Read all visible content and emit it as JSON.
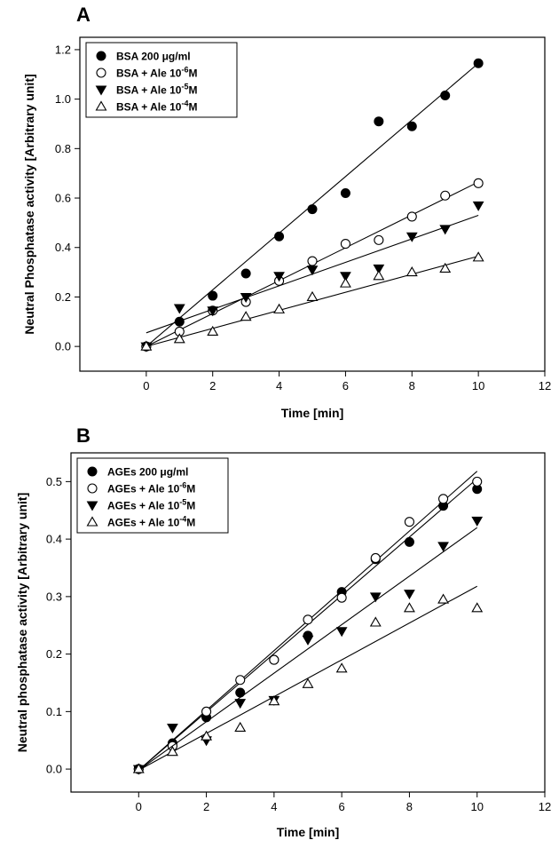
{
  "chart_data": [
    {
      "type": "scatter",
      "panel_label": "A",
      "xlabel": "Time [min]",
      "ylabel": "Neutral Phosphatase activity [Arbitrary unit]",
      "xlim": [
        -2,
        12
      ],
      "ylim": [
        -0.1,
        1.25
      ],
      "xticks": [
        0,
        2,
        4,
        6,
        8,
        10,
        12
      ],
      "yticks": [
        0.0,
        0.2,
        0.4,
        0.6,
        0.8,
        1.0,
        1.2
      ],
      "ytick_labels": [
        "0.0",
        "0.2",
        "0.4",
        "0.6",
        "0.8",
        "1.0",
        "1.2"
      ],
      "grid": false,
      "legend_position": "top-left",
      "series": [
        {
          "name": "BSA 200 μg/ml",
          "name_pre": "BSA 200 μg/ml",
          "name_exp": "",
          "name_post": "",
          "marker": "circle-filled",
          "x": [
            0,
            1,
            2,
            3,
            4,
            5,
            6,
            7,
            8,
            9,
            10
          ],
          "y": [
            0.0,
            0.1,
            0.205,
            0.295,
            0.445,
            0.555,
            0.62,
            0.91,
            0.89,
            1.015,
            1.145
          ],
          "fit": [
            0.0,
            0.0,
            10,
            1.145
          ]
        },
        {
          "name": "BSA + Ale 10-6M",
          "name_pre": "BSA + Ale 10",
          "name_exp": "-6",
          "name_post": "M",
          "marker": "circle-open",
          "x": [
            0,
            1,
            2,
            3,
            4,
            5,
            6,
            7,
            8,
            9,
            10
          ],
          "y": [
            0.0,
            0.06,
            0.145,
            0.18,
            0.265,
            0.345,
            0.415,
            0.43,
            0.525,
            0.61,
            0.66
          ],
          "fit": [
            0.0,
            0.0,
            10,
            0.665
          ]
        },
        {
          "name": "BSA + Ale 10-5M",
          "name_pre": "BSA + Ale 10",
          "name_exp": "-5",
          "name_post": "M",
          "marker": "triangle-down-filled",
          "x": [
            0,
            1,
            2,
            3,
            4,
            5,
            6,
            7,
            8,
            9,
            10
          ],
          "y": [
            0.0,
            0.155,
            0.145,
            0.2,
            0.285,
            0.31,
            0.285,
            0.315,
            0.445,
            0.475,
            0.57
          ],
          "fit": [
            0.0,
            0.055,
            10,
            0.53
          ]
        },
        {
          "name": "BSA + Ale 10-4M",
          "name_pre": "BSA + Ale 10",
          "name_exp": "-4",
          "name_post": "M",
          "marker": "triangle-up-open",
          "x": [
            0,
            1,
            2,
            3,
            4,
            5,
            6,
            7,
            8,
            9,
            10
          ],
          "y": [
            0.0,
            0.03,
            0.06,
            0.12,
            0.15,
            0.2,
            0.255,
            0.285,
            0.3,
            0.315,
            0.36
          ],
          "fit": [
            0.0,
            0.0,
            10,
            0.365
          ]
        }
      ]
    },
    {
      "type": "scatter",
      "panel_label": "B",
      "xlabel": "Time [min]",
      "ylabel": "Neutral phosphatase activity [Arbitrary unit]",
      "xlim": [
        -2,
        12
      ],
      "ylim": [
        -0.04,
        0.55
      ],
      "xticks": [
        0,
        2,
        4,
        6,
        8,
        10,
        12
      ],
      "yticks": [
        0.0,
        0.1,
        0.2,
        0.3,
        0.4,
        0.5
      ],
      "ytick_labels": [
        "0.0",
        "0.1",
        "0.2",
        "0.3",
        "0.4",
        "0.5"
      ],
      "grid": false,
      "legend_position": "top-left",
      "series": [
        {
          "name": "AGEs 200 μg/ml",
          "name_pre": "AGEs 200 μg/ml",
          "name_exp": "",
          "name_post": "",
          "marker": "circle-filled",
          "x": [
            0,
            1,
            2,
            3,
            4,
            5,
            6,
            7,
            8,
            9,
            10
          ],
          "y": [
            0.0,
            0.045,
            0.09,
            0.133,
            0.19,
            0.232,
            0.308,
            0.365,
            0.395,
            0.458,
            0.487
          ],
          "fit": [
            0.0,
            -0.002,
            10,
            0.505
          ]
        },
        {
          "name": "AGEs + Ale 10-6M",
          "name_pre": "AGEs + Ale 10",
          "name_exp": "-6",
          "name_post": "M",
          "marker": "circle-open",
          "x": [
            0,
            1,
            2,
            3,
            4,
            5,
            6,
            7,
            8,
            9,
            10
          ],
          "y": [
            0.0,
            0.04,
            0.1,
            0.155,
            0.19,
            0.26,
            0.298,
            0.367,
            0.43,
            0.47,
            0.5
          ],
          "fit": [
            0.0,
            -0.002,
            10,
            0.518
          ]
        },
        {
          "name": "AGEs + Ale 10-5M",
          "name_pre": "AGEs + Ale 10",
          "name_exp": "-5",
          "name_post": "M",
          "marker": "triangle-down-filled",
          "x": [
            0,
            1,
            2,
            3,
            4,
            5,
            6,
            7,
            8,
            9,
            10
          ],
          "y": [
            0.0,
            0.072,
            0.05,
            0.115,
            0.12,
            0.225,
            0.24,
            0.3,
            0.305,
            0.388,
            0.432
          ],
          "fit": [
            0.0,
            -0.002,
            10,
            0.42
          ]
        },
        {
          "name": "AGEs + Ale 10-4M",
          "name_pre": "AGEs + Ale 10",
          "name_exp": "-4",
          "name_post": "M",
          "marker": "triangle-up-open",
          "x": [
            0,
            1,
            2,
            3,
            4,
            5,
            6,
            7,
            8,
            9,
            10
          ],
          "y": [
            0.0,
            0.03,
            0.057,
            0.072,
            0.118,
            0.148,
            0.175,
            0.255,
            0.28,
            0.295,
            0.28
          ],
          "fit": [
            0.0,
            -0.002,
            10,
            0.318
          ]
        }
      ]
    }
  ]
}
